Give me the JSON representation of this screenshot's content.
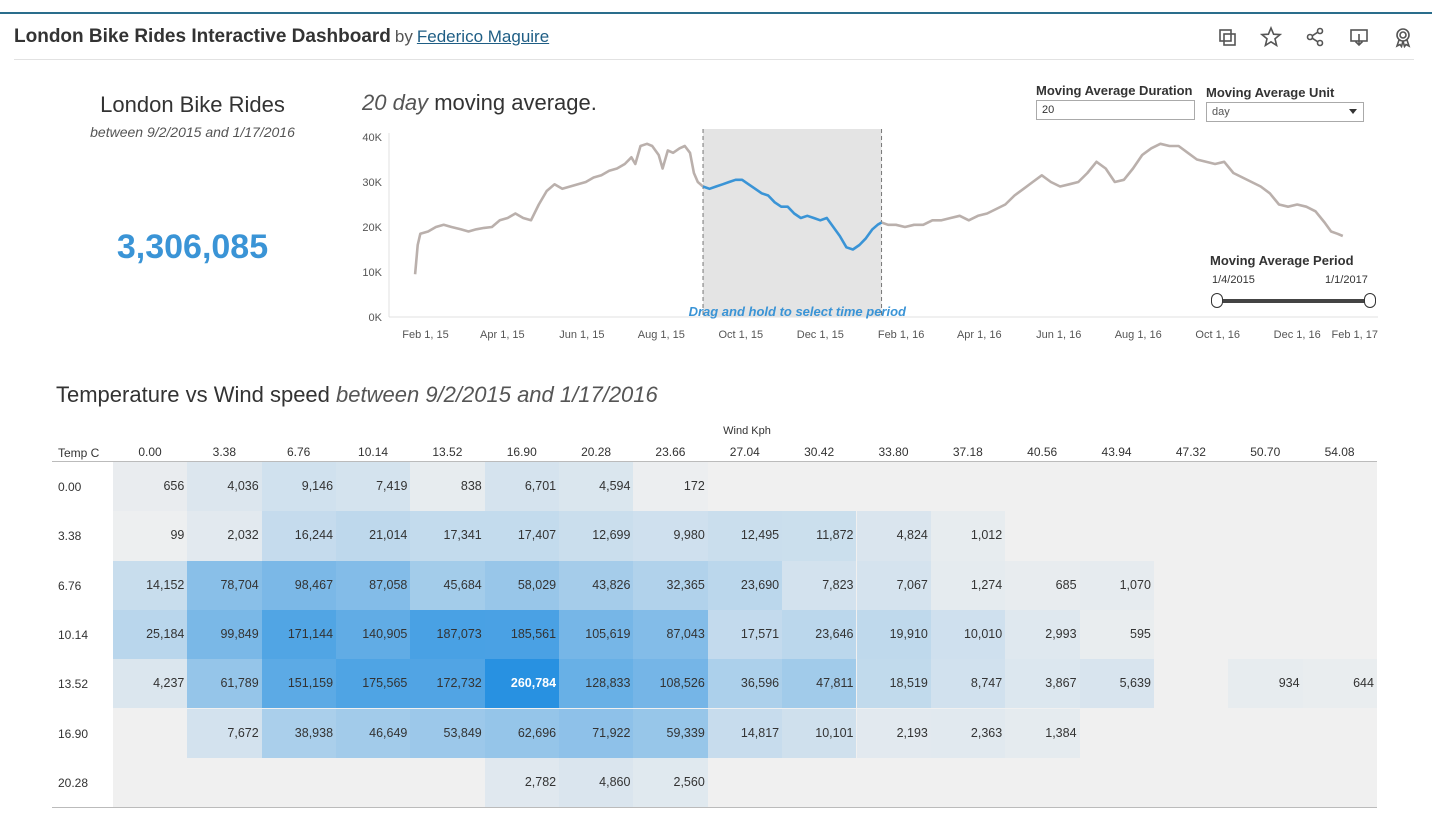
{
  "header": {
    "title": "London Bike Rides Interactive Dashboard",
    "by": "by",
    "author": "Federico Maguire",
    "toolbar": [
      "duplicate-icon",
      "star-icon",
      "share-icon",
      "download-icon",
      "badge-icon"
    ]
  },
  "kpi": {
    "title": "London Bike Rides",
    "subtitle": "between 9/2/2015 and 1/17/2016",
    "value": "3,306,085"
  },
  "line_chart": {
    "title_italic": "20 day",
    "title_rest": "moving average.",
    "drag_hint": "Drag and hold to select time period"
  },
  "controls": {
    "duration_label": "Moving Average Duration",
    "duration_value": "20",
    "unit_label": "Moving Average Unit",
    "unit_value": "day",
    "period_label": "Moving Average Period",
    "period_min": "1/4/2015",
    "period_max": "1/1/2017"
  },
  "heatmap": {
    "title": "Temperature vs Wind speed",
    "title_italic": "between 9/2/2015 and 1/17/2016",
    "x_label": "Wind Kph",
    "y_label": "Temp  C",
    "columns": [
      "0.00",
      "3.38",
      "6.76",
      "10.14",
      "13.52",
      "16.90",
      "20.28",
      "23.66",
      "27.04",
      "30.42",
      "33.80",
      "37.18",
      "40.56",
      "43.94",
      "47.32",
      "50.70",
      "54.08"
    ],
    "rows": [
      "0.00",
      "3.38",
      "6.76",
      "10.14",
      "13.52",
      "16.90",
      "20.28"
    ]
  },
  "colors": {
    "accent": "#3a94d6",
    "line_other": "#bab0ac",
    "selection": "#e4e4e4"
  },
  "chart_data": [
    {
      "type": "line",
      "yticks": [
        "40K",
        "30K",
        "20K",
        "10K",
        "0K"
      ],
      "xticks": [
        "Feb 1, 15",
        "Apr 1, 15",
        "Jun 1, 15",
        "Aug 1, 15",
        "Oct 1, 15",
        "Dec 1, 15",
        "Feb 1, 16",
        "Apr 1, 16",
        "Jun 1, 16",
        "Aug 1, 16",
        "Oct 1, 16",
        "Dec 1, 16",
        "Feb 1, 17"
      ],
      "ylim": [
        0,
        40000
      ],
      "xlim": [
        "2015-01-04",
        "2017-02-01"
      ],
      "selection": [
        "2015-09-02",
        "2016-01-17"
      ],
      "series": [
        {
          "x": [
            "2015-01-24",
            "2015-01-26",
            "2015-01-28",
            "2015-02-03",
            "2015-02-09",
            "2015-02-15",
            "2015-02-21",
            "2015-02-28",
            "2015-03-06",
            "2015-03-12",
            "2015-03-18",
            "2015-03-24",
            "2015-03-30",
            "2015-04-05",
            "2015-04-11",
            "2015-04-17",
            "2015-04-23",
            "2015-04-29",
            "2015-05-05",
            "2015-05-11",
            "2015-05-17",
            "2015-05-23",
            "2015-05-29",
            "2015-06-04",
            "2015-06-10",
            "2015-06-16",
            "2015-06-22",
            "2015-06-28",
            "2015-07-04",
            "2015-07-09",
            "2015-07-12",
            "2015-07-16",
            "2015-07-21",
            "2015-07-25",
            "2015-07-30",
            "2015-08-02",
            "2015-08-06",
            "2015-08-10",
            "2015-08-15",
            "2015-08-19",
            "2015-08-23",
            "2015-08-26",
            "2015-08-29",
            "2015-09-02",
            "2015-09-07",
            "2015-09-12",
            "2015-09-17",
            "2015-09-22",
            "2015-09-27",
            "2015-10-02",
            "2015-10-07",
            "2015-10-12",
            "2015-10-17",
            "2015-10-22",
            "2015-10-27",
            "2015-11-01",
            "2015-11-06",
            "2015-11-11",
            "2015-11-16",
            "2015-11-21",
            "2015-11-26",
            "2015-12-01",
            "2015-12-06",
            "2015-12-11",
            "2015-12-16",
            "2015-12-21",
            "2015-12-26",
            "2015-12-31",
            "2016-01-05",
            "2016-01-10",
            "2016-01-14",
            "2016-01-17",
            "2016-01-22",
            "2016-01-28",
            "2016-02-04",
            "2016-02-11",
            "2016-02-18",
            "2016-02-25",
            "2016-03-03",
            "2016-03-10",
            "2016-03-17",
            "2016-03-24",
            "2016-03-31",
            "2016-04-07",
            "2016-04-14",
            "2016-04-21",
            "2016-04-28",
            "2016-05-05",
            "2016-05-12",
            "2016-05-19",
            "2016-05-26",
            "2016-06-02",
            "2016-06-09",
            "2016-06-16",
            "2016-06-23",
            "2016-06-30",
            "2016-07-07",
            "2016-07-14",
            "2016-07-21",
            "2016-07-28",
            "2016-08-04",
            "2016-08-11",
            "2016-08-18",
            "2016-08-25",
            "2016-09-01",
            "2016-09-08",
            "2016-09-15",
            "2016-09-22",
            "2016-09-29",
            "2016-10-06",
            "2016-10-13",
            "2016-10-20",
            "2016-10-27",
            "2016-11-03",
            "2016-11-10",
            "2016-11-17",
            "2016-11-24",
            "2016-12-01",
            "2016-12-08",
            "2016-12-15",
            "2016-12-22",
            "2016-12-27",
            "2017-01-01",
            "2017-01-05"
          ],
          "values": [
            9500,
            16000,
            18500,
            19000,
            20000,
            20500,
            20000,
            19500,
            19000,
            19500,
            19800,
            20000,
            21500,
            22000,
            23000,
            22000,
            21500,
            25000,
            28000,
            29500,
            28500,
            29000,
            29500,
            30000,
            31000,
            31500,
            32500,
            33000,
            34000,
            35500,
            34000,
            38000,
            38500,
            38000,
            36000,
            33000,
            37000,
            36500,
            37500,
            38000,
            36500,
            32000,
            30000,
            29000,
            28500,
            29000,
            29500,
            30000,
            30500,
            30500,
            29500,
            28500,
            27500,
            27000,
            25500,
            24500,
            24500,
            23000,
            22000,
            22500,
            22000,
            21500,
            22000,
            20000,
            18000,
            15500,
            15000,
            16000,
            17500,
            19500,
            20500,
            21000,
            20500,
            20500,
            20000,
            20500,
            20500,
            21500,
            21500,
            22000,
            22500,
            21500,
            22500,
            23000,
            24000,
            25000,
            27000,
            28500,
            30000,
            31500,
            30000,
            29000,
            29500,
            30000,
            32000,
            34500,
            33000,
            30000,
            30500,
            33000,
            36000,
            37500,
            38500,
            38000,
            38000,
            36500,
            35000,
            34500,
            34000,
            34500,
            32000,
            31000,
            30000,
            29000,
            27500,
            25000,
            24500,
            25000,
            24500,
            23500,
            21000,
            19000,
            18500,
            18000
          ]
        }
      ]
    },
    {
      "type": "heatmap",
      "x": [
        "0.00",
        "3.38",
        "6.76",
        "10.14",
        "13.52",
        "16.90",
        "20.28",
        "23.66",
        "27.04",
        "30.42",
        "33.80",
        "37.18",
        "40.56",
        "43.94",
        "47.32",
        "50.70",
        "54.08"
      ],
      "y": [
        "0.00",
        "3.38",
        "6.76",
        "10.14",
        "13.52",
        "16.90",
        "20.28"
      ],
      "values": [
        [
          656,
          4036,
          9146,
          7419,
          838,
          6701,
          4594,
          172,
          null,
          null,
          null,
          null,
          null,
          null,
          null,
          null,
          null
        ],
        [
          99,
          2032,
          16244,
          21014,
          17341,
          17407,
          12699,
          9980,
          12495,
          11872,
          4824,
          1012,
          null,
          null,
          null,
          null,
          null
        ],
        [
          14152,
          78704,
          98467,
          87058,
          45684,
          58029,
          43826,
          32365,
          23690,
          7823,
          7067,
          1274,
          685,
          1070,
          null,
          null,
          null
        ],
        [
          25184,
          99849,
          171144,
          140905,
          187073,
          185561,
          105619,
          87043,
          17571,
          23646,
          19910,
          10010,
          2993,
          595,
          null,
          null,
          null
        ],
        [
          4237,
          61789,
          151159,
          175565,
          172732,
          260784,
          128833,
          108526,
          36596,
          47811,
          18519,
          8747,
          3867,
          5639,
          null,
          934,
          644
        ],
        [
          null,
          7672,
          38938,
          46649,
          53849,
          62696,
          71922,
          59339,
          14817,
          10101,
          2193,
          2363,
          1384,
          null,
          null,
          null,
          null
        ],
        [
          null,
          null,
          null,
          null,
          null,
          2782,
          4860,
          2560,
          null,
          null,
          null,
          null,
          null,
          null,
          null,
          null,
          null
        ]
      ]
    }
  ]
}
